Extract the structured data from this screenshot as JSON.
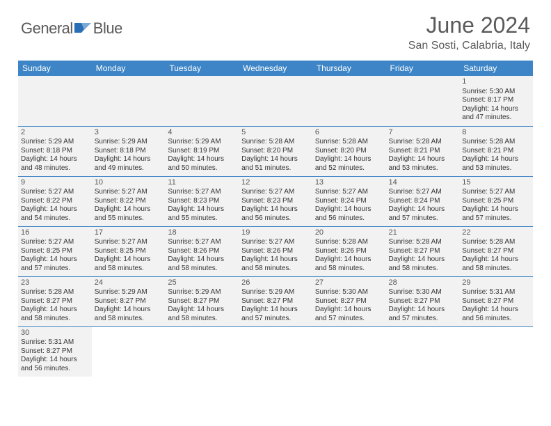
{
  "brand": {
    "name_a": "General",
    "name_b": "Blue"
  },
  "title": "June 2024",
  "location": "San Sosti, Calabria, Italy",
  "colors": {
    "header_bg": "#3d85c6",
    "header_text": "#ffffff",
    "cell_bg": "#f2f2f2",
    "border": "#3d85c6",
    "title_color": "#5a5a5a",
    "text_color": "#333333"
  },
  "weekdays": [
    "Sunday",
    "Monday",
    "Tuesday",
    "Wednesday",
    "Thursday",
    "Friday",
    "Saturday"
  ],
  "weeks": [
    [
      null,
      null,
      null,
      null,
      null,
      null,
      {
        "n": "1",
        "sr": "5:30 AM",
        "ss": "8:17 PM",
        "dl": "14 hours and 47 minutes."
      }
    ],
    [
      {
        "n": "2",
        "sr": "5:29 AM",
        "ss": "8:18 PM",
        "dl": "14 hours and 48 minutes."
      },
      {
        "n": "3",
        "sr": "5:29 AM",
        "ss": "8:18 PM",
        "dl": "14 hours and 49 minutes."
      },
      {
        "n": "4",
        "sr": "5:29 AM",
        "ss": "8:19 PM",
        "dl": "14 hours and 50 minutes."
      },
      {
        "n": "5",
        "sr": "5:28 AM",
        "ss": "8:20 PM",
        "dl": "14 hours and 51 minutes."
      },
      {
        "n": "6",
        "sr": "5:28 AM",
        "ss": "8:20 PM",
        "dl": "14 hours and 52 minutes."
      },
      {
        "n": "7",
        "sr": "5:28 AM",
        "ss": "8:21 PM",
        "dl": "14 hours and 53 minutes."
      },
      {
        "n": "8",
        "sr": "5:28 AM",
        "ss": "8:21 PM",
        "dl": "14 hours and 53 minutes."
      }
    ],
    [
      {
        "n": "9",
        "sr": "5:27 AM",
        "ss": "8:22 PM",
        "dl": "14 hours and 54 minutes."
      },
      {
        "n": "10",
        "sr": "5:27 AM",
        "ss": "8:22 PM",
        "dl": "14 hours and 55 minutes."
      },
      {
        "n": "11",
        "sr": "5:27 AM",
        "ss": "8:23 PM",
        "dl": "14 hours and 55 minutes."
      },
      {
        "n": "12",
        "sr": "5:27 AM",
        "ss": "8:23 PM",
        "dl": "14 hours and 56 minutes."
      },
      {
        "n": "13",
        "sr": "5:27 AM",
        "ss": "8:24 PM",
        "dl": "14 hours and 56 minutes."
      },
      {
        "n": "14",
        "sr": "5:27 AM",
        "ss": "8:24 PM",
        "dl": "14 hours and 57 minutes."
      },
      {
        "n": "15",
        "sr": "5:27 AM",
        "ss": "8:25 PM",
        "dl": "14 hours and 57 minutes."
      }
    ],
    [
      {
        "n": "16",
        "sr": "5:27 AM",
        "ss": "8:25 PM",
        "dl": "14 hours and 57 minutes."
      },
      {
        "n": "17",
        "sr": "5:27 AM",
        "ss": "8:25 PM",
        "dl": "14 hours and 58 minutes."
      },
      {
        "n": "18",
        "sr": "5:27 AM",
        "ss": "8:26 PM",
        "dl": "14 hours and 58 minutes."
      },
      {
        "n": "19",
        "sr": "5:27 AM",
        "ss": "8:26 PM",
        "dl": "14 hours and 58 minutes."
      },
      {
        "n": "20",
        "sr": "5:28 AM",
        "ss": "8:26 PM",
        "dl": "14 hours and 58 minutes."
      },
      {
        "n": "21",
        "sr": "5:28 AM",
        "ss": "8:27 PM",
        "dl": "14 hours and 58 minutes."
      },
      {
        "n": "22",
        "sr": "5:28 AM",
        "ss": "8:27 PM",
        "dl": "14 hours and 58 minutes."
      }
    ],
    [
      {
        "n": "23",
        "sr": "5:28 AM",
        "ss": "8:27 PM",
        "dl": "14 hours and 58 minutes."
      },
      {
        "n": "24",
        "sr": "5:29 AM",
        "ss": "8:27 PM",
        "dl": "14 hours and 58 minutes."
      },
      {
        "n": "25",
        "sr": "5:29 AM",
        "ss": "8:27 PM",
        "dl": "14 hours and 58 minutes."
      },
      {
        "n": "26",
        "sr": "5:29 AM",
        "ss": "8:27 PM",
        "dl": "14 hours and 57 minutes."
      },
      {
        "n": "27",
        "sr": "5:30 AM",
        "ss": "8:27 PM",
        "dl": "14 hours and 57 minutes."
      },
      {
        "n": "28",
        "sr": "5:30 AM",
        "ss": "8:27 PM",
        "dl": "14 hours and 57 minutes."
      },
      {
        "n": "29",
        "sr": "5:31 AM",
        "ss": "8:27 PM",
        "dl": "14 hours and 56 minutes."
      }
    ],
    [
      {
        "n": "30",
        "sr": "5:31 AM",
        "ss": "8:27 PM",
        "dl": "14 hours and 56 minutes."
      },
      null,
      null,
      null,
      null,
      null,
      null
    ]
  ],
  "labels": {
    "sunrise": "Sunrise:",
    "sunset": "Sunset:",
    "daylight": "Daylight:"
  }
}
